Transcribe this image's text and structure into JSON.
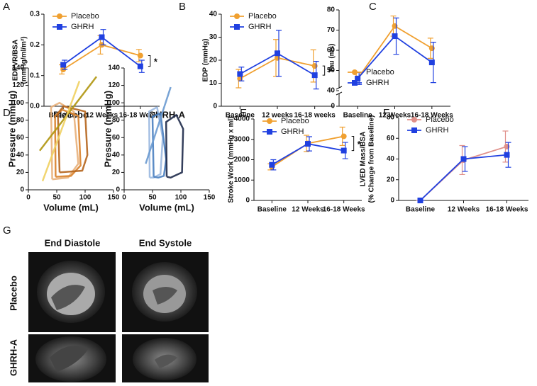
{
  "chart_data": [
    {
      "type": "line",
      "panel": "A",
      "ylabel": [
        "EDPVR/BSA",
        "(mmHg/ml/m²)"
      ],
      "categories": [
        "Baseline",
        "12 Weeks",
        "16-18 Weeks"
      ],
      "ylim": [
        0,
        0.3
      ],
      "yticks": [
        {
          "value": 0,
          "label": "0.0"
        },
        0.1,
        0.2,
        0.3
      ],
      "legend": "upper left",
      "annotation": "*",
      "series": [
        {
          "name": "Placebo",
          "color": "#f0a030",
          "marker": "circle",
          "values": [
            0.12,
            0.2,
            0.165
          ],
          "errors": [
            0.015,
            0.03,
            0.02
          ]
        },
        {
          "name": "GHRH",
          "color": "#2040e0",
          "marker": "square",
          "values": [
            0.135,
            0.225,
            0.13
          ],
          "errors": [
            0.015,
            0.025,
            0.02
          ]
        }
      ]
    },
    {
      "type": "line",
      "panel": "B",
      "ylabel": [
        "EDP (mmHg)"
      ],
      "categories": [
        "Baseline",
        "12 weeks",
        "16-18 weeks"
      ],
      "ylim": [
        0,
        40
      ],
      "yticks": [
        0,
        10,
        20,
        30,
        40
      ],
      "legend": "upper left",
      "annotation": "*",
      "series": [
        {
          "name": "Placebo",
          "color": "#f0a030",
          "marker": "circle",
          "values": [
            12,
            21,
            17.5
          ],
          "errors": [
            4,
            8,
            7
          ]
        },
        {
          "name": "GHRH",
          "color": "#2040e0",
          "marker": "square",
          "values": [
            14,
            23,
            13.5
          ],
          "errors": [
            3,
            10,
            6
          ]
        }
      ]
    },
    {
      "type": "line",
      "panel": "C",
      "ylabel": [
        "Tau (ms)"
      ],
      "categories": [
        "Baseline",
        "12 Weeks",
        "16-18 Weeks"
      ],
      "ylim": [
        0,
        80
      ],
      "ybreak": [
        0,
        40
      ],
      "yticks": [
        0,
        40,
        50,
        60,
        70,
        80
      ],
      "legend": "lower left",
      "series": [
        {
          "name": "Placebo",
          "color": "#f0a030",
          "marker": "circle",
          "values": [
            46,
            72,
            61
          ],
          "errors": [
            3,
            5,
            5
          ]
        },
        {
          "name": "GHRH",
          "color": "#2040e0",
          "marker": "square",
          "values": [
            46,
            67,
            54
          ],
          "errors": [
            3,
            9,
            10
          ]
        }
      ]
    },
    {
      "type": "line",
      "panel": "E",
      "ylabel": [
        "Stroke Work (mmHg x ml)"
      ],
      "categories": [
        "Baseline",
        "12 Weeks",
        "16-18 Weeks"
      ],
      "ylim": [
        0,
        4000
      ],
      "yticks": [
        0,
        1000,
        2000,
        3000,
        4000
      ],
      "legend": "upper left",
      "annotation": "*",
      "series": [
        {
          "name": "Placebo",
          "color": "#f0a030",
          "marker": "circle",
          "values": [
            1650,
            2800,
            3150
          ],
          "errors": [
            150,
            400,
            450
          ]
        },
        {
          "name": "GHRH",
          "color": "#2040e0",
          "marker": "square",
          "values": [
            1750,
            2780,
            2450
          ],
          "errors": [
            250,
            350,
            400
          ]
        }
      ]
    },
    {
      "type": "line",
      "panel": "F",
      "ylabel": [
        "LVED Mass/BSA",
        "(% Change from Baseline)"
      ],
      "categories": [
        "Baseline",
        "12 Weeks",
        "16-18 Weeks"
      ],
      "ylim": [
        0,
        80
      ],
      "yticks": [
        0,
        20,
        40,
        60,
        80
      ],
      "legend": "upper left",
      "series": [
        {
          "name": "Placebo",
          "color": "#e0908a",
          "marker": "circle",
          "values": [
            0,
            39,
            52
          ],
          "errors": [
            0,
            14,
            15
          ]
        },
        {
          "name": "GHRH",
          "color": "#2040e0",
          "marker": "square",
          "values": [
            0,
            40,
            44
          ],
          "errors": [
            0,
            12,
            12
          ]
        }
      ]
    },
    {
      "type": "loop",
      "panel": "D",
      "title": "Placebo",
      "xlabel": "Volume (mL)",
      "ylabel": [
        "Pressure (mmHg)"
      ],
      "xlim": [
        0,
        150
      ],
      "xticks": [
        0,
        50,
        100,
        150
      ],
      "ylim": [
        0,
        140
      ],
      "yticks": [
        0,
        20,
        40,
        60,
        80,
        100,
        120,
        140
      ],
      "series": [
        {
          "color": "#e8b07a",
          "x": [
            42,
            40,
            55,
            80,
            88,
            70,
            42
          ],
          "values": [
            12,
            95,
            100,
            90,
            30,
            14,
            12
          ]
        },
        {
          "color": "#d9822b",
          "x": [
            48,
            47,
            60,
            88,
            92,
            75,
            48
          ],
          "values": [
            15,
            85,
            92,
            85,
            28,
            16,
            15
          ]
        },
        {
          "color": "#b5651d",
          "x": [
            55,
            52,
            62,
            100,
            104,
            95,
            55
          ],
          "values": [
            20,
            88,
            96,
            90,
            40,
            22,
            20
          ]
        },
        {
          "color": "#b0960f",
          "x": [
            20,
            120
          ],
          "values": [
            45,
            130
          ]
        },
        {
          "color": "#f0d060",
          "x": [
            25,
            90
          ],
          "values": [
            10,
            125
          ]
        }
      ]
    },
    {
      "type": "loop",
      "panel": "",
      "title": "GHRH-A",
      "xlabel": "Volume (mL)",
      "ylabel": [
        "Pressure (mmHg)"
      ],
      "xlim": [
        0,
        150
      ],
      "xticks": [
        0,
        50,
        100,
        150
      ],
      "ylim": [
        0,
        140
      ],
      "yticks": [
        0,
        20,
        40,
        60,
        80,
        100,
        120,
        140
      ],
      "series": [
        {
          "color": "#9ab8e0",
          "x": [
            45,
            44,
            58,
            68,
            64,
            52,
            45
          ],
          "values": [
            14,
            90,
            95,
            60,
            18,
            14,
            14
          ]
        },
        {
          "color": "#4a7fc0",
          "x": [
            52,
            50,
            64,
            74,
            70,
            60,
            52
          ],
          "values": [
            15,
            84,
            88,
            35,
            16,
            14,
            15
          ]
        },
        {
          "color": "#1e2a4a",
          "x": [
            75,
            74,
            92,
            104,
            102,
            82,
            75
          ],
          "values": [
            15,
            78,
            86,
            70,
            20,
            14,
            15
          ]
        },
        {
          "color": "#6a9ad0",
          "x": [
            38,
            82
          ],
          "values": [
            30,
            118
          ]
        }
      ]
    }
  ],
  "figure_g": {
    "panel": "G",
    "columns": [
      "End Diastole",
      "End Systole"
    ],
    "rows": [
      "Placebo",
      "GHRH-A"
    ]
  }
}
